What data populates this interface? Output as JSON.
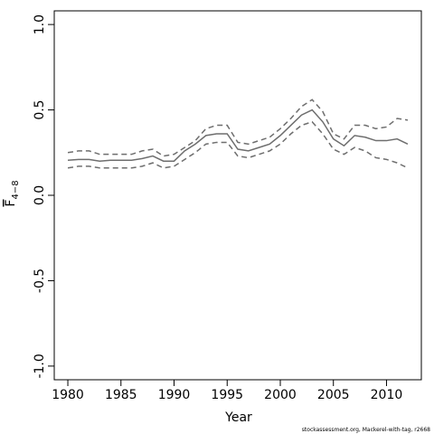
{
  "chart_data": {
    "type": "line",
    "xlabel": "Year",
    "ylabel": "F",
    "ylabel_sub": "4−8",
    "footnote": "stockassessment.org, Mackerel-with-tag, r2668",
    "x": [
      1980,
      1981,
      1982,
      1983,
      1984,
      1985,
      1986,
      1987,
      1988,
      1989,
      1990,
      1991,
      1992,
      1993,
      1994,
      1995,
      1996,
      1997,
      1998,
      1999,
      2000,
      2001,
      2002,
      2003,
      2004,
      2005,
      2006,
      2007,
      2008,
      2009,
      2010,
      2011,
      2012
    ],
    "series": [
      {
        "color": "#6e6e6e",
        "linestyle": "solid",
        "values": [
          0.205,
          0.21,
          0.21,
          0.2,
          0.205,
          0.205,
          0.205,
          0.215,
          0.23,
          0.2,
          0.2,
          0.26,
          0.3,
          0.35,
          0.36,
          0.36,
          0.27,
          0.26,
          0.28,
          0.3,
          0.35,
          0.41,
          0.47,
          0.5,
          0.43,
          0.33,
          0.29,
          0.35,
          0.34,
          0.32,
          0.32,
          0.33,
          0.3
        ]
      },
      {
        "color": "#6e6e6e",
        "linestyle": "dashed",
        "values": [
          0.25,
          0.26,
          0.26,
          0.24,
          0.24,
          0.24,
          0.24,
          0.26,
          0.27,
          0.23,
          0.24,
          0.28,
          0.32,
          0.39,
          0.41,
          0.41,
          0.31,
          0.3,
          0.32,
          0.34,
          0.39,
          0.45,
          0.52,
          0.56,
          0.49,
          0.36,
          0.33,
          0.41,
          0.41,
          0.39,
          0.4,
          0.45,
          0.44
        ]
      },
      {
        "color": "#6e6e6e",
        "linestyle": "dashed",
        "values": [
          0.16,
          0.17,
          0.17,
          0.16,
          0.16,
          0.16,
          0.16,
          0.17,
          0.19,
          0.16,
          0.17,
          0.21,
          0.25,
          0.3,
          0.31,
          0.31,
          0.23,
          0.22,
          0.24,
          0.26,
          0.3,
          0.36,
          0.41,
          0.43,
          0.36,
          0.27,
          0.24,
          0.28,
          0.26,
          0.22,
          0.21,
          0.19,
          0.16
        ]
      }
    ],
    "xlim": [
      1978.72,
      2013.28
    ],
    "xticks": [
      1980,
      1985,
      1990,
      1995,
      2000,
      2005,
      2010
    ],
    "ylim": [
      -1.08,
      1.08
    ],
    "yticks": [
      {
        "value": -1,
        "label": "-1.0"
      },
      {
        "value": -0.5,
        "label": "-0.5"
      },
      {
        "value": 0,
        "label": "0.0"
      },
      {
        "value": 0.5,
        "label": "0.5"
      },
      {
        "value": 1,
        "label": "1.0"
      }
    ],
    "grid": false
  }
}
